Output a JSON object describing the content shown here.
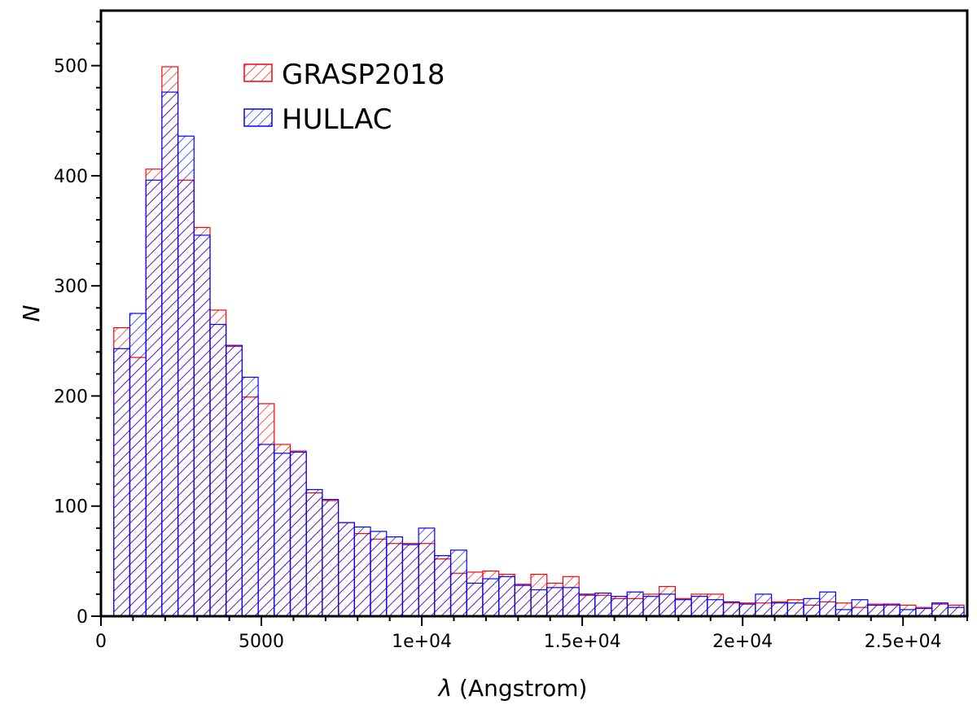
{
  "chart_data": {
    "type": "bar",
    "xlabel_symbol": "λ",
    "xlabel_unit": "(Angstrom)",
    "ylabel": "N",
    "xlim": [
      0,
      27000
    ],
    "ylim": [
      0,
      550
    ],
    "xticks": [
      0,
      5000,
      10000,
      15000,
      20000,
      25000
    ],
    "xtick_labels": [
      "0",
      "5000",
      "1e+04",
      "1.5e+04",
      "2e+04",
      "2.5e+04"
    ],
    "yticks": [
      0,
      100,
      200,
      300,
      400,
      500
    ],
    "ytick_labels": [
      "0",
      "100",
      "200",
      "300",
      "400",
      "500"
    ],
    "grid": false,
    "legend_position": "top-left",
    "bin_width": 500,
    "bin_starts": [
      400,
      900,
      1400,
      1900,
      2400,
      2900,
      3400,
      3900,
      4400,
      4900,
      5400,
      5900,
      6400,
      6900,
      7400,
      7900,
      8400,
      8900,
      9400,
      9900,
      10400,
      10900,
      11400,
      11900,
      12400,
      12900,
      13400,
      13900,
      14400,
      14900,
      15400,
      15900,
      16400,
      16900,
      17400,
      17900,
      18400,
      18900,
      19400,
      19900,
      20400,
      20900,
      21400,
      21900,
      22400,
      22900,
      23400,
      23900,
      24400,
      24900,
      25400,
      25900,
      26400
    ],
    "series": [
      {
        "name": "GRASP2018",
        "color": "#ff0000",
        "values": [
          262,
          235,
          406,
          499,
          396,
          353,
          278,
          245,
          199,
          193,
          156,
          150,
          112,
          105,
          85,
          75,
          70,
          66,
          66,
          66,
          52,
          39,
          40,
          41,
          38,
          29,
          38,
          30,
          36,
          19,
          19,
          16,
          16,
          20,
          27,
          16,
          20,
          20,
          12,
          12,
          12,
          13,
          15,
          10,
          13,
          12,
          8,
          11,
          10,
          10,
          8,
          11,
          10
        ]
      },
      {
        "name": "HULLAC",
        "color": "#0000ff",
        "values": [
          243,
          275,
          396,
          476,
          436,
          346,
          265,
          246,
          217,
          156,
          148,
          149,
          115,
          106,
          85,
          81,
          77,
          72,
          65,
          80,
          55,
          60,
          30,
          34,
          36,
          28,
          24,
          26,
          26,
          20,
          21,
          18,
          22,
          18,
          20,
          15,
          18,
          15,
          13,
          11,
          20,
          12,
          12,
          16,
          22,
          6,
          15,
          10,
          11,
          6,
          7,
          12,
          8
        ]
      }
    ]
  }
}
